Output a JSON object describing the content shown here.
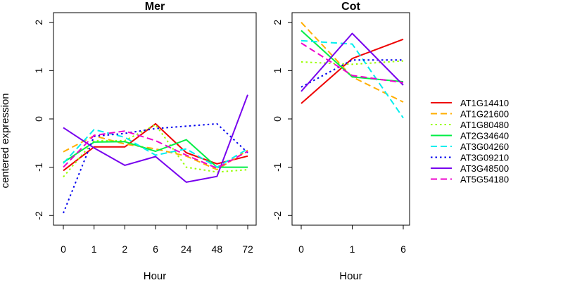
{
  "ylabel": "centered expression",
  "chart_data": [
    {
      "type": "line",
      "title": "Mer",
      "xlabel": "Hour",
      "ylabel": "centered expression",
      "categories": [
        "0",
        "1",
        "2",
        "6",
        "24",
        "48",
        "72"
      ],
      "ylim": [
        -2.2,
        2.2
      ],
      "yticks": [
        -2,
        -1,
        0,
        1,
        2
      ],
      "grid": false,
      "series": [
        {
          "name": "AT1G14410",
          "values": [
            -1.07,
            -0.58,
            -0.58,
            -0.1,
            -0.7,
            -0.93,
            -0.77
          ]
        },
        {
          "name": "AT1G21600",
          "values": [
            -0.68,
            -0.35,
            -0.52,
            -0.62,
            -0.77,
            -1.05,
            -0.65
          ]
        },
        {
          "name": "AT1G80480",
          "values": [
            -1.2,
            -0.45,
            -0.45,
            -0.12,
            -1.0,
            -1.1,
            -1.05
          ]
        },
        {
          "name": "AT2G34640",
          "values": [
            -0.9,
            -0.48,
            -0.47,
            -0.67,
            -0.43,
            -1.0,
            -1.0
          ]
        },
        {
          "name": "AT3G04260",
          "values": [
            -0.92,
            -0.22,
            -0.38,
            -0.75,
            -0.62,
            -1.0,
            -0.62
          ]
        },
        {
          "name": "AT3G09210",
          "values": [
            -1.95,
            -0.36,
            -0.3,
            -0.2,
            -0.15,
            -0.1,
            -0.7
          ]
        },
        {
          "name": "AT3G48500",
          "values": [
            -0.18,
            -0.6,
            -0.96,
            -0.78,
            -1.31,
            -1.19,
            0.5
          ]
        },
        {
          "name": "AT5G54180",
          "values": [
            -1.0,
            -0.34,
            -0.25,
            -0.45,
            -0.75,
            -1.02,
            -0.67
          ]
        }
      ]
    },
    {
      "type": "line",
      "title": "Cot",
      "xlabel": "Hour",
      "categories": [
        "0",
        "1",
        "6"
      ],
      "ylim": [
        -2.2,
        2.2
      ],
      "yticks": [
        -2,
        -1,
        0,
        1,
        2
      ],
      "grid": false,
      "series": [
        {
          "name": "AT1G14410",
          "values": [
            0.32,
            1.25,
            1.65
          ]
        },
        {
          "name": "AT1G21600",
          "values": [
            2.0,
            0.87,
            0.35
          ]
        },
        {
          "name": "AT1G80480",
          "values": [
            1.18,
            1.13,
            1.2
          ]
        },
        {
          "name": "AT2G34640",
          "values": [
            1.83,
            0.87,
            0.77
          ]
        },
        {
          "name": "AT3G04260",
          "values": [
            1.62,
            1.55,
            0.02
          ]
        },
        {
          "name": "AT3G09210",
          "values": [
            0.66,
            1.22,
            1.22
          ]
        },
        {
          "name": "AT3G48500",
          "values": [
            0.57,
            1.77,
            0.7
          ]
        },
        {
          "name": "AT5G54180",
          "values": [
            1.57,
            0.9,
            0.75
          ]
        }
      ]
    }
  ],
  "legend": {
    "placement": "right",
    "items": [
      {
        "label": "AT1G14410",
        "color": "#ee0000",
        "dash": "solid"
      },
      {
        "label": "AT1G21600",
        "color": "#ffae00",
        "dash": "dashed"
      },
      {
        "label": "AT1G80480",
        "color": "#99ff00",
        "dash": "dotted"
      },
      {
        "label": "AT2G34640",
        "color": "#00ee44",
        "dash": "solid"
      },
      {
        "label": "AT3G04260",
        "color": "#00eeee",
        "dash": "dashed"
      },
      {
        "label": "AT3G09210",
        "color": "#0000ee",
        "dash": "dotted"
      },
      {
        "label": "AT3G48500",
        "color": "#7700ee",
        "dash": "solid"
      },
      {
        "label": "AT5G54180",
        "color": "#ee00cc",
        "dash": "dashed"
      }
    ]
  }
}
